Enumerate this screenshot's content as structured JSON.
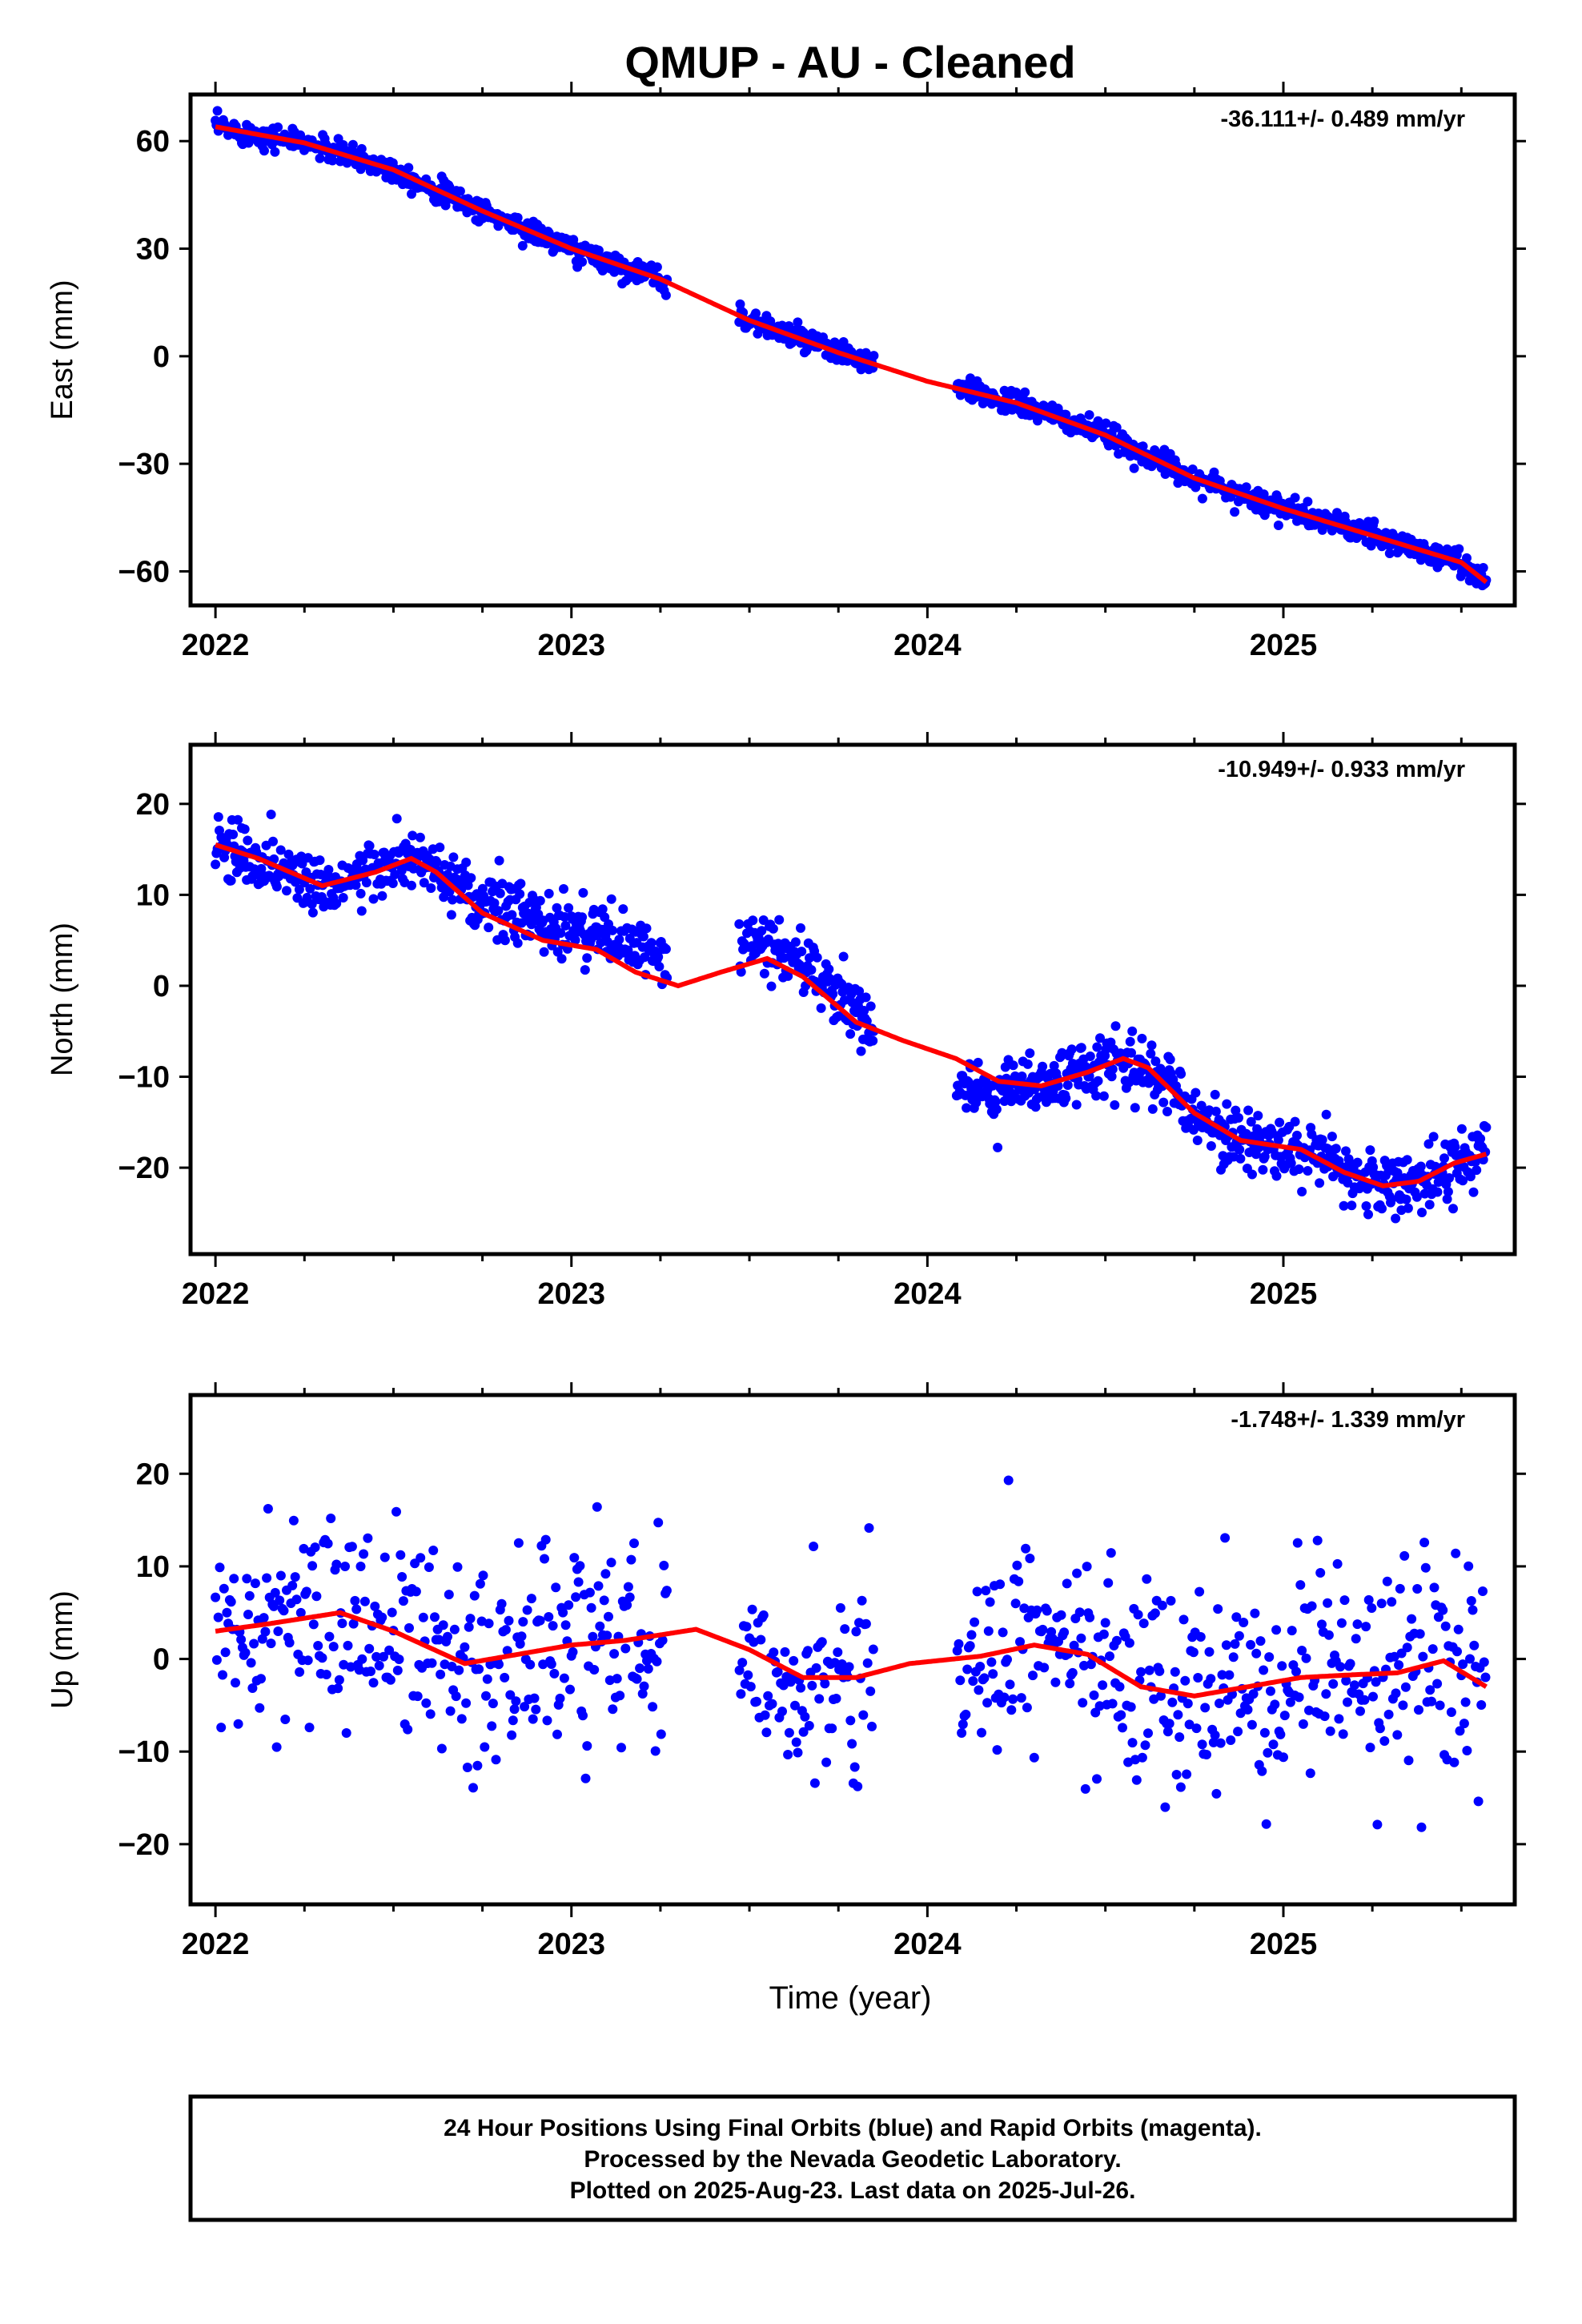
{
  "title": "QMUP  - AU - Cleaned",
  "xlabel": "Time (year)",
  "x_ticks": [
    "2022",
    "2023",
    "2024",
    "2025"
  ],
  "colors": {
    "final_orbits": "#0000ff",
    "model_fit": "#ff0000",
    "rapid_orbits": "#ff00ff"
  },
  "footer": {
    "line1": "24 Hour Positions Using Final Orbits (blue) and Rapid Orbits (magenta).",
    "line2": "Processed by the Nevada Geodetic Laboratory.",
    "line3": "Plotted on 2025-Aug-23. Last data on 2025-Jul-26."
  },
  "chart_data": [
    {
      "type": "scatter",
      "component": "east",
      "ylabel": "East (mm)",
      "rate_label": "-36.111+/- 0.489 mm/yr",
      "xlim": [
        2021.93,
        2025.65
      ],
      "ylim": [
        -69.5,
        73
      ],
      "y_ticks": [
        60,
        30,
        0,
        -30,
        -60
      ],
      "y_tick_labels": [
        "60",
        "30",
        "0",
        "−30",
        "−60"
      ],
      "gaps": [
        [
          2023.27,
          2023.47
        ],
        [
          2023.85,
          2024.08
        ]
      ],
      "scatter_sd": 1.6,
      "fit": {
        "name": "",
        "points": [
          [
            2022.0,
            64
          ],
          [
            2022.25,
            59.5
          ],
          [
            2022.5,
            52
          ],
          [
            2022.75,
            40.5
          ],
          [
            2023.0,
            30
          ],
          [
            2023.25,
            21.5
          ],
          [
            2023.5,
            10
          ],
          [
            2023.75,
            1
          ],
          [
            2024.0,
            -7
          ],
          [
            2024.25,
            -13
          ],
          [
            2024.5,
            -22
          ],
          [
            2024.75,
            -34
          ],
          [
            2025.0,
            -42.5
          ],
          [
            2025.25,
            -50
          ],
          [
            2025.5,
            -57.5
          ],
          [
            2025.57,
            -63
          ]
        ]
      }
    },
    {
      "type": "scatter",
      "component": "north",
      "ylabel": "North (mm)",
      "rate_label": "-10.949+/- 0.933 mm/yr",
      "xlim": [
        2021.93,
        2025.65
      ],
      "ylim": [
        -29.5,
        26.5
      ],
      "y_ticks": [
        20,
        10,
        0,
        -10,
        -20
      ],
      "y_tick_labels": [
        "20",
        "10",
        "0",
        "−10",
        "−20"
      ],
      "gaps": [
        [
          2023.27,
          2023.47
        ],
        [
          2023.85,
          2024.08
        ]
      ],
      "scatter_sd": 1.7,
      "fit": {
        "name": "",
        "points": [
          [
            2022.0,
            15.5
          ],
          [
            2022.12,
            14
          ],
          [
            2022.3,
            11
          ],
          [
            2022.45,
            12.5
          ],
          [
            2022.55,
            14
          ],
          [
            2022.62,
            12.5
          ],
          [
            2022.75,
            8
          ],
          [
            2022.92,
            5
          ],
          [
            2023.07,
            4
          ],
          [
            2023.18,
            1.5
          ],
          [
            2023.3,
            0
          ],
          [
            2023.42,
            1.5
          ],
          [
            2023.55,
            3
          ],
          [
            2023.65,
            1
          ],
          [
            2023.8,
            -4
          ],
          [
            2023.93,
            -6
          ],
          [
            2024.08,
            -8
          ],
          [
            2024.2,
            -10.5
          ],
          [
            2024.32,
            -11
          ],
          [
            2024.45,
            -9.5
          ],
          [
            2024.55,
            -8
          ],
          [
            2024.62,
            -9
          ],
          [
            2024.75,
            -14
          ],
          [
            2024.88,
            -17
          ],
          [
            2025.05,
            -18
          ],
          [
            2025.17,
            -20.5
          ],
          [
            2025.28,
            -22
          ],
          [
            2025.38,
            -21.5
          ],
          [
            2025.48,
            -19.5
          ],
          [
            2025.57,
            -18.5
          ]
        ]
      }
    },
    {
      "type": "scatter",
      "component": "up",
      "ylabel": "Up (mm)",
      "rate_label": "-1.748+/- 1.339 mm/yr",
      "xlim": [
        2021.93,
        2025.65
      ],
      "ylim": [
        -26.5,
        28.5
      ],
      "y_ticks": [
        20,
        10,
        0,
        -10,
        -20
      ],
      "y_tick_labels": [
        "20",
        "10",
        "0",
        "−10",
        "−20"
      ],
      "gaps": [
        [
          2023.27,
          2023.47
        ],
        [
          2023.85,
          2024.08
        ]
      ],
      "scatter_sd": 5.5,
      "fit": {
        "name": "",
        "points": [
          [
            2022.0,
            3
          ],
          [
            2022.15,
            3.8
          ],
          [
            2022.35,
            5
          ],
          [
            2022.5,
            3
          ],
          [
            2022.7,
            -0.5
          ],
          [
            2022.85,
            0.5
          ],
          [
            2023.0,
            1.5
          ],
          [
            2023.15,
            2
          ],
          [
            2023.35,
            3.2
          ],
          [
            2023.5,
            1
          ],
          [
            2023.65,
            -2
          ],
          [
            2023.8,
            -2
          ],
          [
            2023.95,
            -0.5
          ],
          [
            2024.15,
            0.3
          ],
          [
            2024.3,
            1.5
          ],
          [
            2024.45,
            0.5
          ],
          [
            2024.6,
            -3
          ],
          [
            2024.75,
            -4
          ],
          [
            2024.9,
            -3
          ],
          [
            2025.05,
            -2
          ],
          [
            2025.2,
            -1.7
          ],
          [
            2025.32,
            -1.5
          ],
          [
            2025.45,
            -0.2
          ],
          [
            2025.57,
            -3
          ]
        ]
      }
    }
  ]
}
